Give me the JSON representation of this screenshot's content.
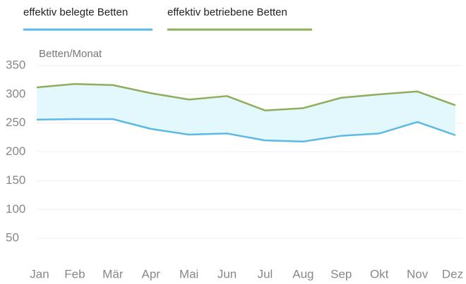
{
  "chart_data": {
    "type": "line",
    "y_label": "Betten/Monat",
    "categories": [
      "Jan",
      "Feb",
      "Mär",
      "Apr",
      "Mai",
      "Jun",
      "Jul",
      "Aug",
      "Sep",
      "Okt",
      "Nov",
      "Dez"
    ],
    "series": [
      {
        "name": "effektiv belegte Betten",
        "color": "#5cb8e4",
        "values": [
          256,
          257,
          257,
          240,
          230,
          232,
          220,
          218,
          228,
          232,
          252,
          229
        ]
      },
      {
        "name": "effektiv betriebene Betten",
        "color": "#8fad5c",
        "values": [
          312,
          318,
          316,
          302,
          291,
          297,
          272,
          276,
          294,
          300,
          305,
          281
        ]
      }
    ],
    "fill_between": "#e3f8fc",
    "ylim": [
      0,
      350
    ],
    "yticks": [
      50,
      100,
      150,
      200,
      250,
      300,
      350
    ],
    "grid": true
  }
}
